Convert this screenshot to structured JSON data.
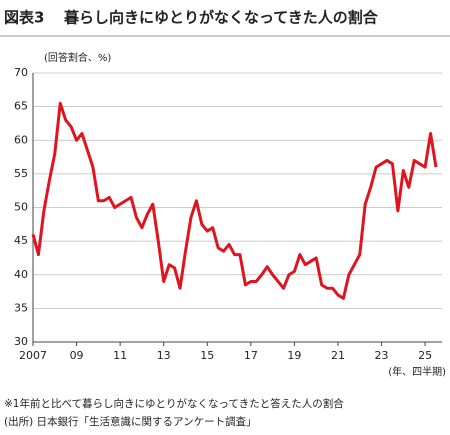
{
  "chart_data": {
    "type": "line",
    "title_label": "図表3",
    "title": "暮らし向きにゆとりがなくなってきた人の割合",
    "y_axis_label": "(回答割合、%)",
    "x_axis_label": "(年、四半期)",
    "notes": [
      "※1年前と比べて暮らし向きにゆとりがなくなってきたと答えた人の割合",
      "(出所) 日本銀行「生活意識に関するアンケート調査」"
    ],
    "categories": [
      "2007",
      null,
      null,
      null,
      null,
      null,
      null,
      null,
      "09",
      null,
      null,
      null,
      null,
      null,
      null,
      null,
      "11",
      null,
      null,
      null,
      null,
      null,
      null,
      null,
      "13",
      null,
      null,
      null,
      null,
      null,
      null,
      null,
      "15",
      null,
      null,
      null,
      null,
      null,
      null,
      null,
      "17",
      null,
      null,
      null,
      null,
      null,
      null,
      null,
      "19",
      null,
      null,
      null,
      null,
      null,
      null,
      null,
      "21",
      null,
      null,
      null,
      null,
      null,
      null,
      null,
      "23",
      null,
      null,
      null,
      null,
      null,
      null,
      null,
      "25",
      null,
      null
    ],
    "series": [
      {
        "color": "#e0141e",
        "values": [
          46,
          43,
          49.5,
          54,
          58,
          65.5,
          63,
          62,
          60,
          61,
          58.5,
          56,
          51,
          51,
          51.5,
          50,
          50.5,
          51,
          51.5,
          48.5,
          47,
          49,
          50.5,
          45,
          39,
          41.5,
          41,
          38,
          43.5,
          48.5,
          51,
          47.5,
          46.5,
          47,
          44,
          43.5,
          44.5,
          43,
          43,
          38.5,
          39,
          39,
          40,
          41.2,
          40,
          39,
          38,
          40,
          40.5,
          43,
          41.5,
          42,
          42.5,
          38.5,
          38,
          38,
          37,
          36.5,
          40,
          41.5,
          43,
          50.5,
          53,
          56,
          56.5,
          57,
          56.5,
          49.5,
          55.5,
          53,
          57,
          56.5,
          56,
          61,
          56
        ]
      }
    ],
    "ylim": [
      30,
      70
    ],
    "yticks": [
      30,
      35,
      40,
      45,
      50,
      55,
      60,
      65,
      70
    ],
    "grid": true
  }
}
